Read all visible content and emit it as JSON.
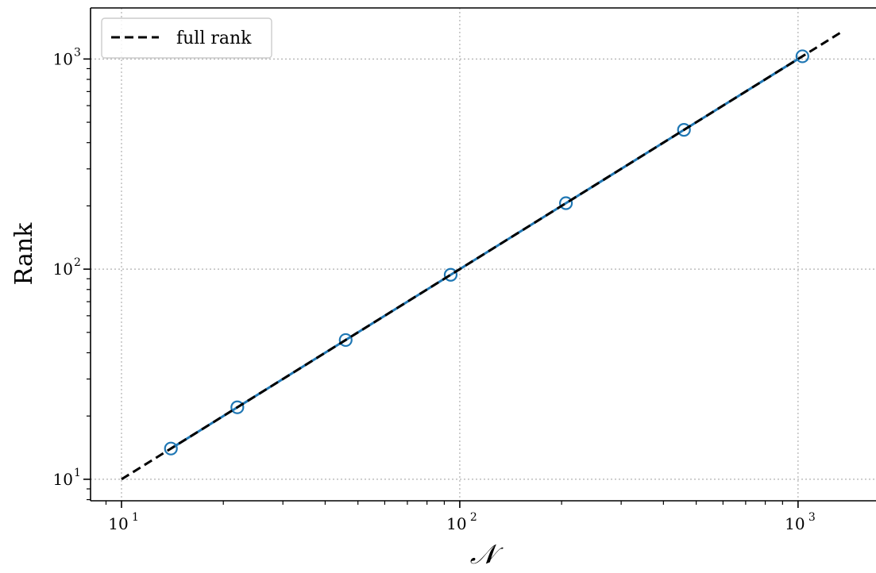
{
  "chart_data": {
    "type": "line",
    "title": "",
    "xlabel": "𝒩",
    "ylabel": "Rank",
    "xscale": "log",
    "yscale": "log",
    "xlim": [
      8.1,
      1700
    ],
    "ylim": [
      7.9,
      1750
    ],
    "x_major_ticks": [
      10,
      100,
      1000
    ],
    "y_major_ticks": [
      10,
      100,
      1000
    ],
    "tick_labels": {
      "base": "10",
      "exponents": [
        "1",
        "2",
        "3"
      ]
    },
    "grid": true,
    "grid_style": "dotted",
    "legend": {
      "position": "top-left",
      "entries": [
        {
          "label": "full rank",
          "style": "dashed",
          "color": "#000000"
        }
      ]
    },
    "series": [
      {
        "name": "full rank",
        "style": "dashed",
        "color": "#000000",
        "x": [
          10,
          1340
        ],
        "y": [
          10,
          1340
        ]
      },
      {
        "style": "solid",
        "marker": "open-circle",
        "color": "#1f77b4",
        "x": [
          14,
          22,
          46,
          94,
          206,
          460,
          1030
        ],
        "y": [
          14,
          22,
          46,
          94,
          206,
          460,
          1030
        ]
      }
    ]
  }
}
